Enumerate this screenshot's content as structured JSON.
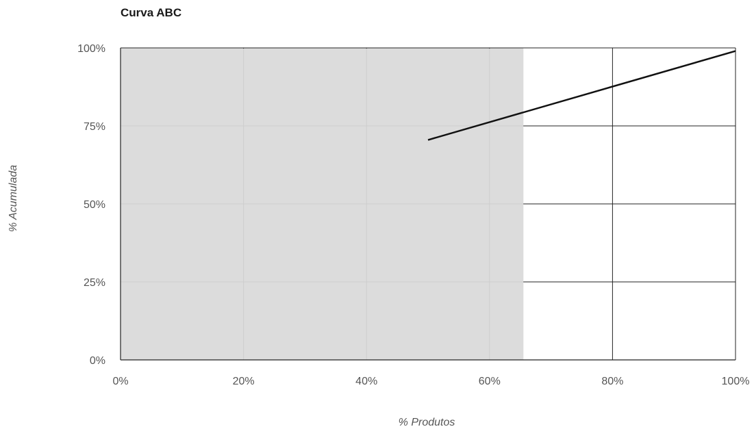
{
  "chart_data": {
    "type": "line",
    "title": "Curva ABC",
    "xlabel": "% Produtos",
    "ylabel": "% Acumulada",
    "xlim": [
      0,
      100
    ],
    "ylim": [
      0,
      100
    ],
    "x_ticks": [
      0,
      20,
      40,
      60,
      80,
      100
    ],
    "y_ticks": [
      0,
      25,
      50,
      75,
      100
    ],
    "x_tick_labels": [
      "0%",
      "20%",
      "40%",
      "60%",
      "80%",
      "100%"
    ],
    "y_tick_labels": [
      "0%",
      "25%",
      "50%",
      "75%",
      "100%"
    ],
    "grid": true,
    "shaded_region": {
      "x_from": 0,
      "x_to": 65.5,
      "color": "#dcdcdc"
    },
    "series": [
      {
        "color": "#111111",
        "points": [
          {
            "x": 50,
            "y": 70.5
          },
          {
            "x": 100,
            "y": 99
          }
        ]
      }
    ]
  }
}
